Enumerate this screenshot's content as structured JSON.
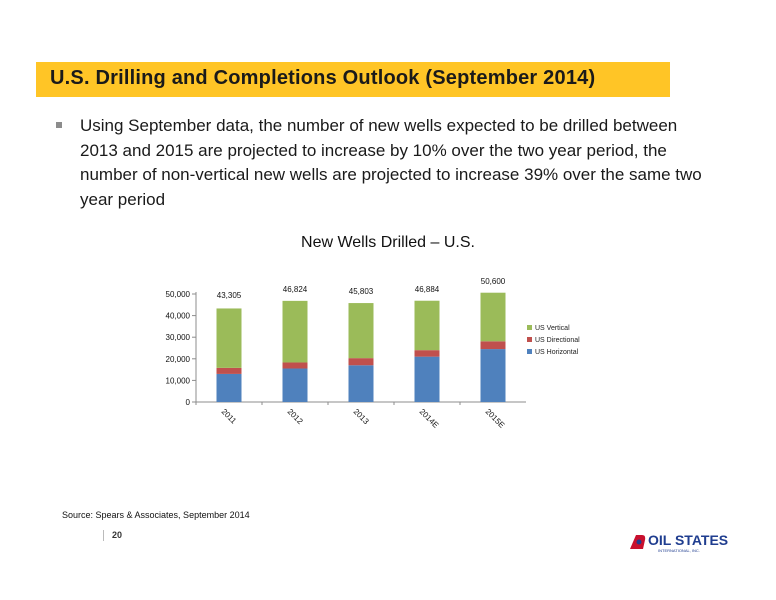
{
  "slide": {
    "title": "U.S. Drilling and Completions Outlook (September 2014)",
    "bullet": "Using September data, the number of new wells expected to be drilled between 2013 and 2015 are projected to increase by 10% over the two year period, the number of non-vertical new wells are projected to increase 39% over the same two year period",
    "source": "Source: Spears & Associates, September 2014",
    "page_number": "20",
    "logo": {
      "text": "OIL STATES",
      "subtext": "INTERNATIONAL, INC."
    }
  },
  "colors": {
    "title_bar": "#ffc526",
    "vertical": "#9bbb59",
    "directional": "#c0504d",
    "horizontal": "#4f81bd",
    "logo_red": "#c8102e",
    "logo_blue": "#1f3d8f"
  },
  "chart_data": {
    "type": "bar",
    "stacked": true,
    "title": "New Wells Drilled – U.S.",
    "categories": [
      "2011",
      "2012",
      "2013",
      "2014E",
      "2015E"
    ],
    "series": [
      {
        "name": "US Horizontal",
        "values": [
          13000,
          15500,
          17000,
          21000,
          24500
        ]
      },
      {
        "name": "US Directional",
        "values": [
          2800,
          2800,
          3300,
          3000,
          3600
        ]
      },
      {
        "name": "US Vertical",
        "values": [
          27505,
          28524,
          25503,
          22884,
          22500
        ]
      }
    ],
    "totals": [
      "43,305",
      "46,824",
      "45,803",
      "46,884",
      "50,600"
    ],
    "yticks": [
      "0",
      "10,000",
      "20,000",
      "30,000",
      "40,000",
      "50,000"
    ],
    "ylim": [
      0,
      50000
    ],
    "grid": false,
    "legend": "right"
  }
}
